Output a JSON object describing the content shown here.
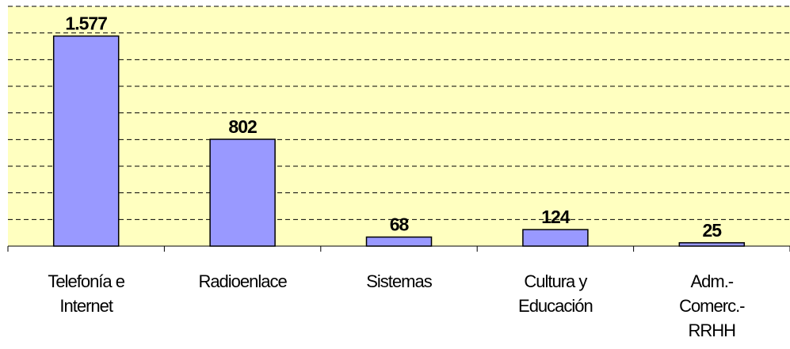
{
  "chart_data": {
    "type": "bar",
    "categories": [
      "Telefonía e Internet",
      "Radioenlace",
      "Sistemas",
      "Cultura y Educación",
      "Adm.-Comerc.-RRHH"
    ],
    "values": [
      1577,
      802,
      68,
      124,
      25
    ],
    "value_labels": [
      "1.577",
      "802",
      "68",
      "124",
      "25"
    ],
    "color": "#9999ff",
    "ylim": [
      0,
      1800
    ],
    "yticks": [
      0,
      200,
      400,
      600,
      800,
      1000,
      1200,
      1400,
      1600,
      1800
    ],
    "grid": true
  }
}
